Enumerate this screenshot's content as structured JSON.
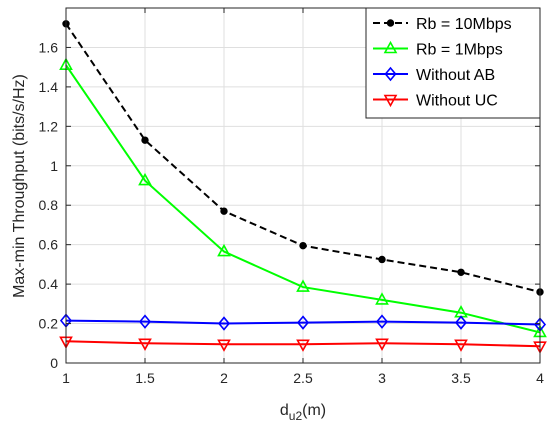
{
  "chart_data": {
    "type": "line",
    "xlabel_main": "d",
    "xlabel_sub": "u2",
    "xlabel_unit": "(m)",
    "ylabel": "Max-min Throughput (bits/s/Hz)",
    "xlim": [
      1,
      4
    ],
    "ylim": [
      0,
      1.8
    ],
    "xticks": [
      1,
      1.5,
      2,
      2.5,
      3,
      3.5,
      4
    ],
    "xtick_labels": [
      "1",
      "1.5",
      "2",
      "2.5",
      "3",
      "3.5",
      "4"
    ],
    "yticks": [
      0,
      0.2,
      0.4,
      0.6,
      0.8,
      1,
      1.2,
      1.4,
      1.6
    ],
    "ytick_labels": [
      "0",
      "0.2",
      "0.4",
      "0.6",
      "0.8",
      "1",
      "1.2",
      "1.4",
      "1.6"
    ],
    "grid": true,
    "legend_position": "top-right",
    "x": [
      1,
      1.5,
      2,
      2.5,
      3,
      3.5,
      4
    ],
    "series": [
      {
        "name": "Rb = 10Mbps",
        "color": "#000000",
        "dash": "dashed",
        "marker": "dot",
        "values": [
          1.72,
          1.13,
          0.77,
          0.595,
          0.525,
          0.46,
          0.36
        ]
      },
      {
        "name": "Rb = 1Mbps",
        "color": "#00ff00",
        "dash": "solid",
        "marker": "triangle-up",
        "values": [
          1.51,
          0.925,
          0.565,
          0.385,
          0.32,
          0.255,
          0.155
        ]
      },
      {
        "name": "Without AB",
        "color": "#0000ff",
        "dash": "solid",
        "marker": "diamond",
        "values": [
          0.215,
          0.21,
          0.2,
          0.205,
          0.21,
          0.205,
          0.195
        ]
      },
      {
        "name": "Without UC",
        "color": "#ff0000",
        "dash": "solid",
        "marker": "triangle-down",
        "values": [
          0.11,
          0.1,
          0.095,
          0.095,
          0.1,
          0.095,
          0.085
        ]
      }
    ]
  }
}
